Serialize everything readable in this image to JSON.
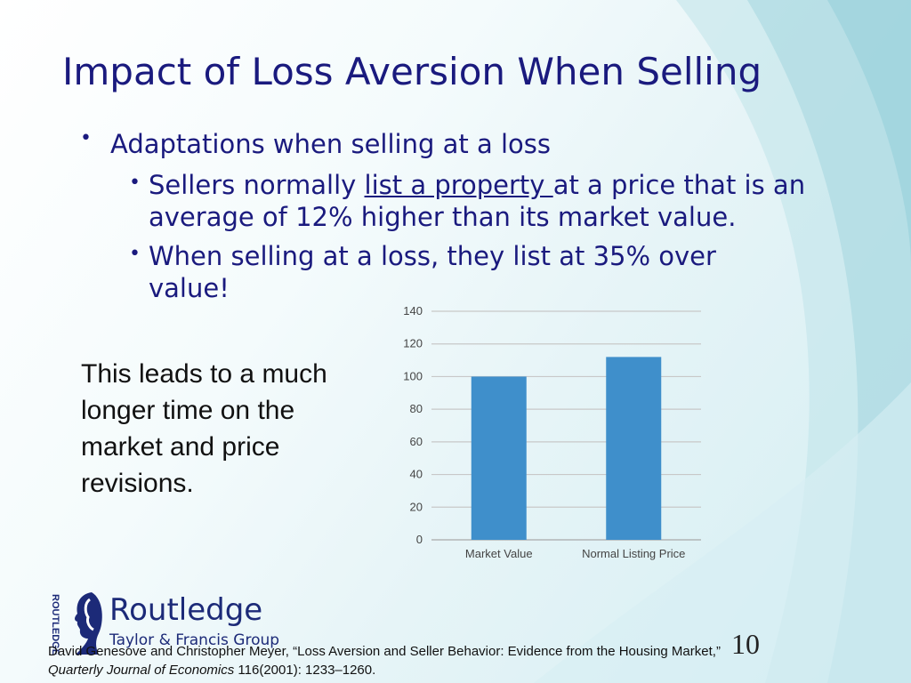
{
  "slide": {
    "title": "Impact of Loss Aversion When Selling",
    "bullet_1": "Adaptations when selling at a loss",
    "sub_bullets": {
      "b1_pre": "Sellers normally ",
      "b1_link": "list a property ",
      "b1_post": "at a price that is an average of 12% higher than its market value.",
      "b2": "When selling at a loss, they list at 35% over value!"
    },
    "side_text": "This leads to a much longer time on the market and price revisions.",
    "citation_line1": "David Genesove and Christopher Meyer, “Loss Aversion and Seller Behavior: Evidence from the Housing Market,”",
    "citation_journal": "Quarterly Journal of Economics",
    "citation_rest": " 116(2001): 1233–1260.",
    "slide_number": "10"
  },
  "logo": {
    "name": "Routledge",
    "subtitle": "Taylor & Francis Group",
    "vertical_text": "ROUTLEDGE",
    "icon": "head-profile-icon"
  },
  "colors": {
    "title": "#1a1a7e",
    "bar": "#3f8fcb",
    "grid": "#c8c8c8"
  },
  "chart_data": {
    "type": "bar",
    "categories": [
      "Market Value",
      "Normal Listing Price"
    ],
    "values": [
      100,
      112
    ],
    "title": "",
    "xlabel": "",
    "ylabel": "",
    "ylim": [
      0,
      140
    ],
    "yticks": [
      0,
      20,
      40,
      60,
      80,
      100,
      120,
      140
    ],
    "grid": true
  }
}
